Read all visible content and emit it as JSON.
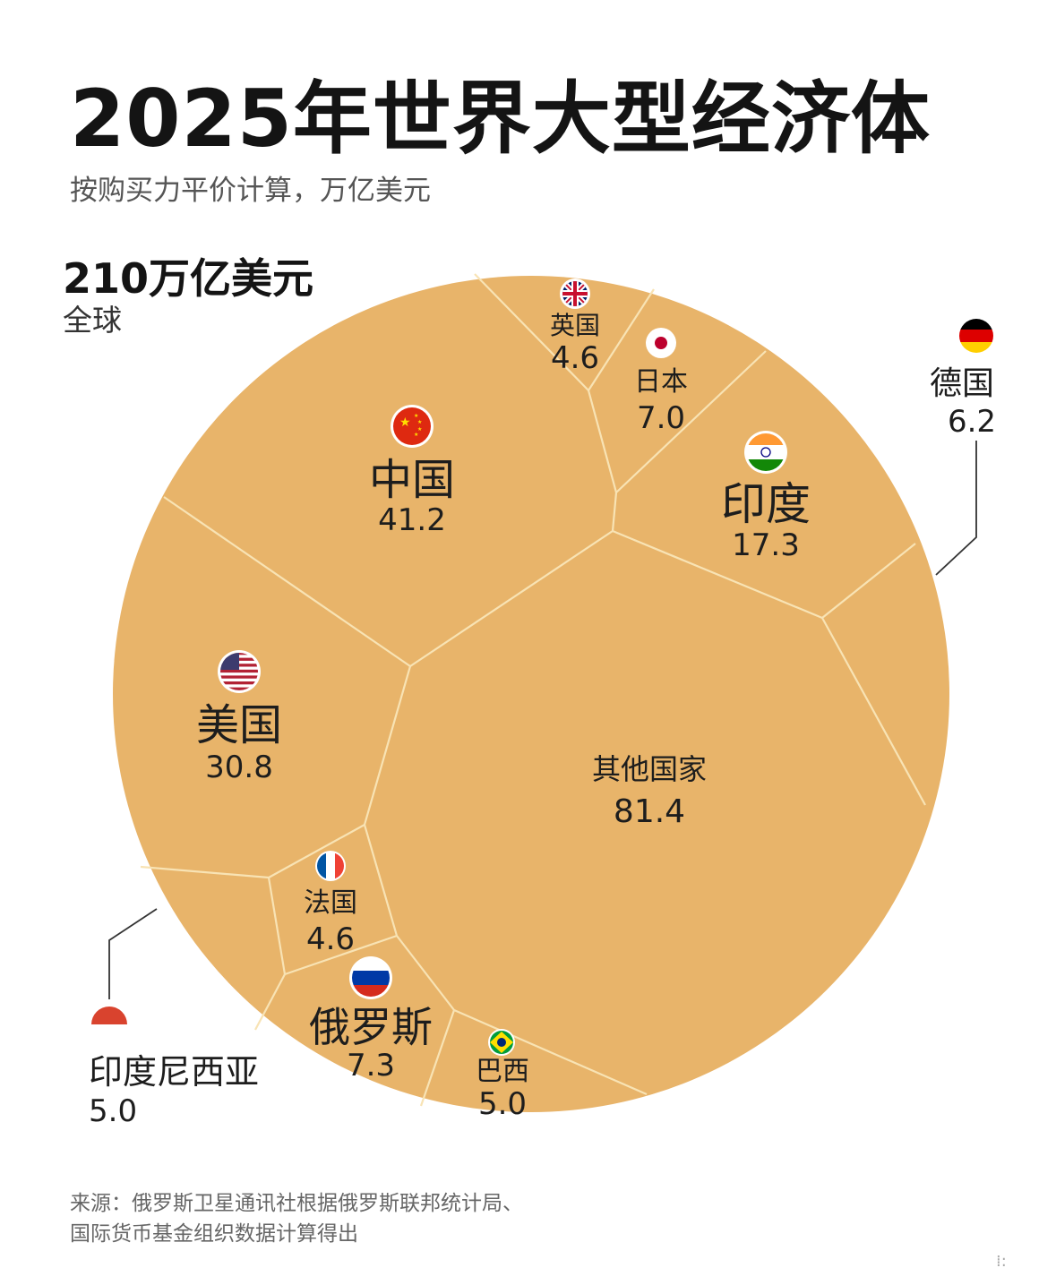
{
  "header": {
    "title": "2025年世界大型经济体",
    "subtitle": "按购买力平价计算，万亿美元"
  },
  "total": {
    "value": "210万亿美元",
    "label": "全球"
  },
  "footer": {
    "source_line1": "来源：俄罗斯卫星通讯社根据俄罗斯联邦统计局、",
    "source_line2": "国际货币基金组织数据计算得出",
    "corner_mark": "⁞:"
  },
  "colors": {
    "cell_fill": "#E8B46A",
    "cell_border": "#F8E3B4",
    "callout_line": "#333333"
  },
  "chart_data": {
    "type": "voronoi-treemap",
    "title": "2025年世界大型经济体",
    "subtitle": "按购买力平价计算，万亿美元",
    "total": 210,
    "unit": "万亿美元",
    "cells": [
      {
        "name": "中国",
        "value": 41.2,
        "value_label": "41.2",
        "flag": "china-flag-icon"
      },
      {
        "name": "英国",
        "value": 4.6,
        "value_label": "4.6",
        "flag": "uk-flag-icon"
      },
      {
        "name": "日本",
        "value": 7.0,
        "value_label": "7.0",
        "flag": "japan-flag-icon"
      },
      {
        "name": "印度",
        "value": 17.3,
        "value_label": "17.3",
        "flag": "india-flag-icon"
      },
      {
        "name": "德国",
        "value": 6.2,
        "value_label": "6.2",
        "flag": "germany-flag-icon"
      },
      {
        "name": "美国",
        "value": 30.8,
        "value_label": "30.8",
        "flag": "usa-flag-icon"
      },
      {
        "name": "其他国家",
        "value": 81.4,
        "value_label": "81.4",
        "flag": ""
      },
      {
        "name": "法国",
        "value": 4.6,
        "value_label": "4.6",
        "flag": "france-flag-icon"
      },
      {
        "name": "俄罗斯",
        "value": 7.3,
        "value_label": "7.3",
        "flag": "russia-flag-icon"
      },
      {
        "name": "印度尼西亚",
        "value": 5.0,
        "value_label": "5.0",
        "flag": "indonesia-flag-icon"
      },
      {
        "name": "巴西",
        "value": 5.0,
        "value_label": "5.0",
        "flag": "brazil-flag-icon"
      }
    ]
  }
}
